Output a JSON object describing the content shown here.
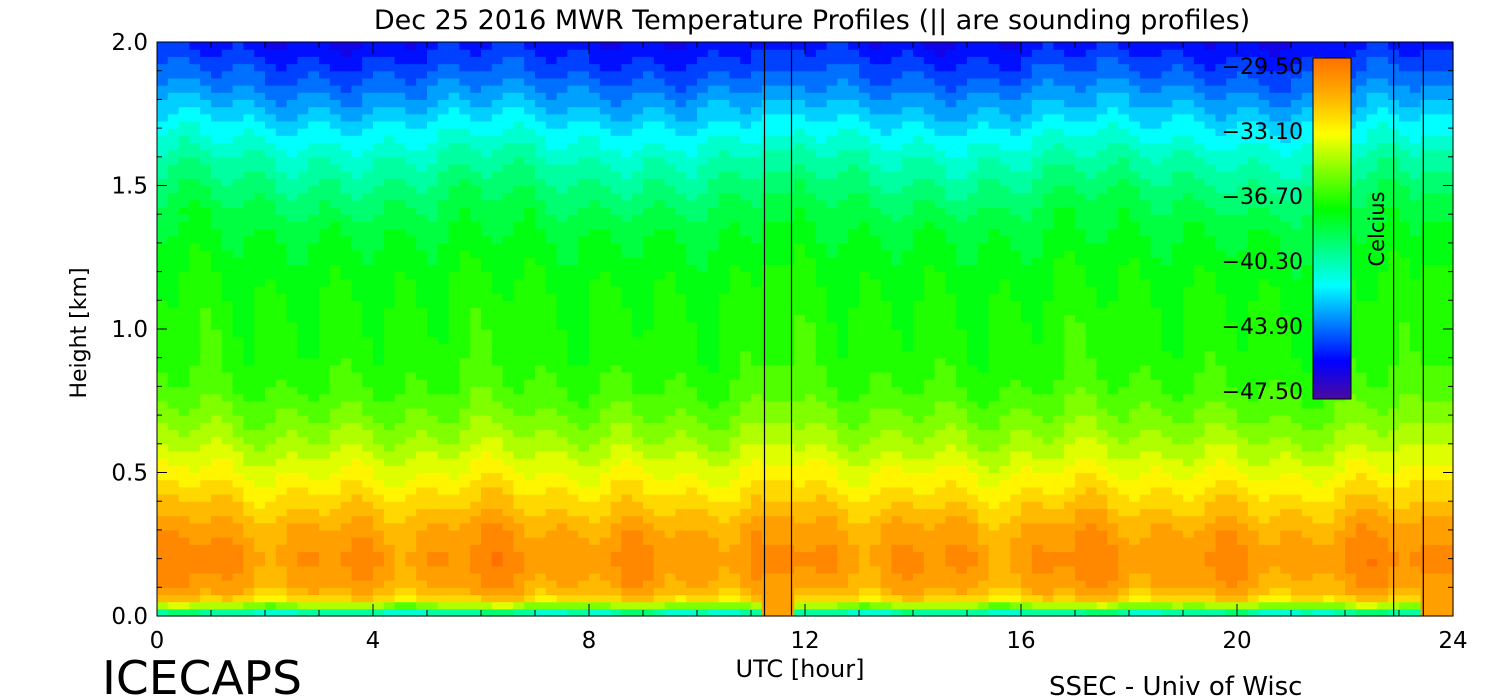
{
  "chart_data": {
    "type": "heatmap",
    "title": "Dec 25 2016 MWR Temperature Profiles (|| are sounding profiles)",
    "xlabel": "UTC [hour]",
    "ylabel": "Height [km]",
    "xlim": [
      0,
      24
    ],
    "ylim": [
      0,
      2
    ],
    "x_ticks": [
      "0",
      "4",
      "8",
      "12",
      "16",
      "20",
      "24"
    ],
    "y_ticks": [
      "0.0",
      "0.5",
      "1.0",
      "1.5",
      "2.0"
    ],
    "colorbar": {
      "label": "Celcius",
      "ticks": [
        "-29.50",
        "-33.10",
        "-36.70",
        "-40.30",
        "-43.90",
        "-47.50"
      ],
      "range": [
        -47.5,
        -29.5
      ],
      "colors": [
        "#4b0aa0",
        "#0000ff",
        "#0080ff",
        "#00ffff",
        "#00ff80",
        "#00ff00",
        "#80ff00",
        "#ffff00",
        "#ffb000",
        "#ff7000"
      ]
    },
    "data_gaps_utc": [
      [
        11.25,
        11.75
      ],
      [
        23.45,
        24.0
      ]
    ],
    "sounding_times_utc": [
      11.25,
      11.75,
      22.9,
      23.45
    ],
    "profile": {
      "heights_km": [
        0.0,
        0.03,
        0.06,
        0.1,
        0.2,
        0.3,
        0.4,
        0.5,
        0.6,
        0.7,
        0.8,
        0.9,
        1.0,
        1.1,
        1.2,
        1.3,
        1.4,
        1.5,
        1.6,
        1.7,
        1.8,
        1.9,
        2.0
      ],
      "temps_c": [
        -43.0,
        -36.0,
        -32.5,
        -31.2,
        -30.6,
        -31.2,
        -32.4,
        -33.6,
        -34.8,
        -35.8,
        -36.6,
        -37.0,
        -37.1,
        -37.3,
        -37.6,
        -38.0,
        -38.6,
        -39.4,
        -40.4,
        -41.6,
        -43.0,
        -44.3,
        -45.4
      ]
    }
  },
  "footer": {
    "left": "ICECAPS",
    "right": "SSEC - Univ of Wisc"
  }
}
